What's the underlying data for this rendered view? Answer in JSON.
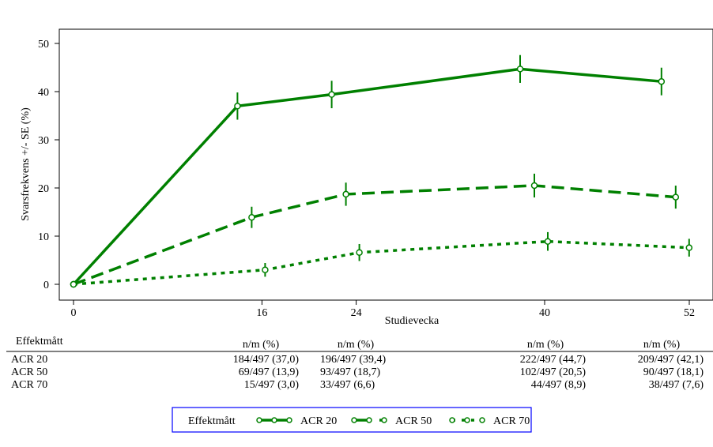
{
  "chart_data": {
    "type": "line",
    "xlabel": "Studievecka",
    "ylabel": "Svarsfrekvens +/- SE (%)",
    "xticks": [
      0,
      16,
      24,
      40,
      52
    ],
    "yticks": [
      0,
      10,
      20,
      30,
      40,
      50
    ],
    "xlim": [
      0,
      52
    ],
    "ylim": [
      0,
      50
    ],
    "grid": false,
    "line_color": "#008000",
    "series": [
      {
        "name": "ACR 20",
        "style": "solid",
        "x": [
          0,
          16,
          24,
          40,
          52
        ],
        "values": [
          0,
          37.0,
          39.4,
          44.7,
          42.1
        ],
        "se": [
          0,
          2.17,
          2.19,
          2.23,
          2.21
        ]
      },
      {
        "name": "ACR 50",
        "style": "dashed",
        "x": [
          0,
          16,
          24,
          40,
          52
        ],
        "values": [
          0,
          13.9,
          18.7,
          20.5,
          18.1
        ],
        "se": [
          0,
          1.55,
          1.75,
          1.81,
          1.73
        ]
      },
      {
        "name": "ACR 70",
        "style": "dotted",
        "x": [
          0,
          16,
          24,
          40,
          52
        ],
        "values": [
          0,
          3.0,
          6.6,
          8.9,
          7.6
        ],
        "se": [
          0,
          0.77,
          1.11,
          1.28,
          1.19
        ]
      }
    ],
    "legend": {
      "title": "Effektmått",
      "placement": "bottom",
      "border_color": "#0000ff"
    }
  },
  "table": {
    "title": "Effektmått",
    "header": "n/m (%)",
    "rows": [
      {
        "label": "ACR 20",
        "cells": [
          "184/497 (37,0)",
          "196/497 (39,4)",
          "222/497 (44,7)",
          "209/497 (42,1)"
        ]
      },
      {
        "label": "ACR 50",
        "cells": [
          "69/497 (13,9)",
          "93/497 (18,7)",
          "102/497 (20,5)",
          "90/497 (18,1)"
        ]
      },
      {
        "label": "ACR 70",
        "cells": [
          "15/497 (3,0)",
          "33/497 (6,6)",
          "44/497 (8,9)",
          "38/497 (7,6)"
        ]
      }
    ]
  }
}
